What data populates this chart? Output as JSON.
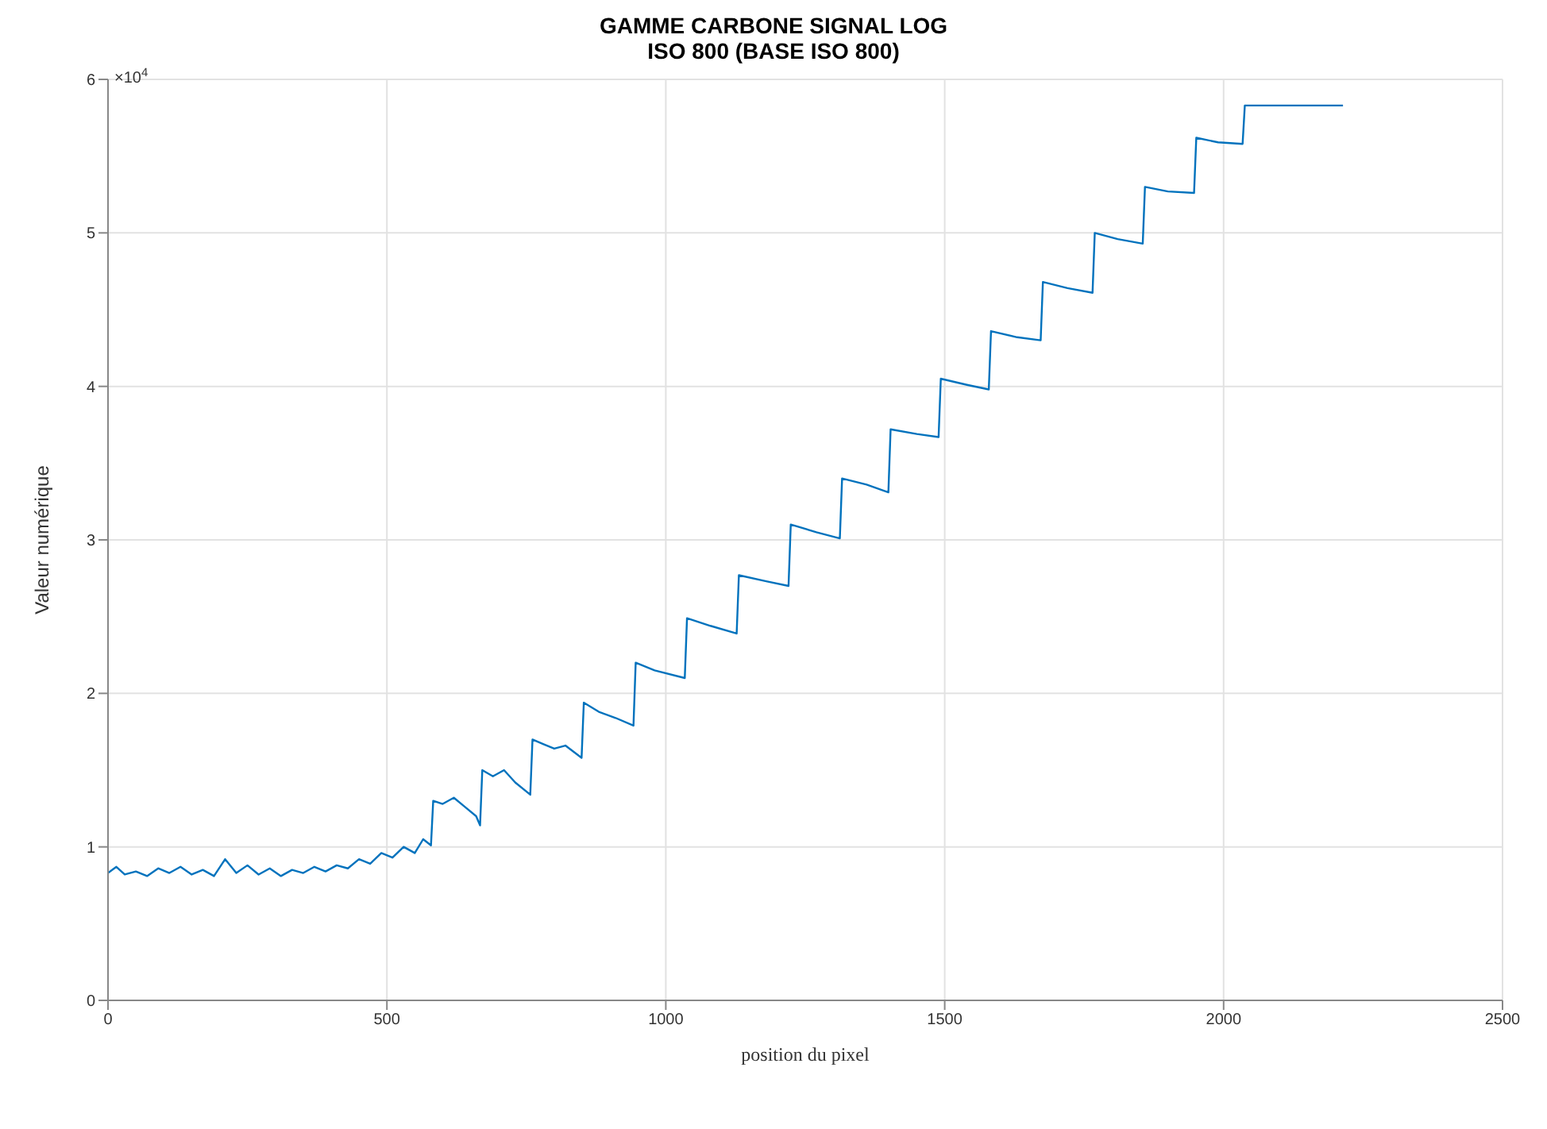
{
  "chart_data": {
    "type": "line",
    "title": "GAMME CARBONE SIGNAL LOG",
    "subtitle": "ISO 800 (BASE ISO 800)",
    "xlabel": "position du pixel",
    "ylabel": "Valeur numérique",
    "annotations": [
      "×10$^{4}$"
    ],
    "x": [
      0,
      15,
      30,
      50,
      70,
      90,
      110,
      130,
      150,
      170,
      190,
      210,
      230,
      250,
      270,
      290,
      310,
      330,
      350,
      370,
      390,
      410,
      430,
      450,
      470,
      490,
      510,
      530,
      550,
      565,
      579,
      583,
      600,
      620,
      640,
      660,
      667,
      671,
      690,
      710,
      730,
      757,
      761,
      780,
      800,
      820,
      849,
      853,
      880,
      910,
      942,
      946,
      980,
      1034,
      1038,
      1080,
      1127,
      1131,
      1180,
      1220,
      1224,
      1270,
      1312,
      1316,
      1360,
      1399,
      1403,
      1450,
      1489,
      1493,
      1540,
      1579,
      1583,
      1630,
      1672,
      1676,
      1720,
      1765,
      1769,
      1810,
      1855,
      1859,
      1900,
      1947,
      1951,
      1990,
      2034,
      2038,
      2214
    ],
    "series": [
      {
        "color": "#0072bd",
        "values": [
          0.83,
          0.87,
          0.82,
          0.84,
          0.81,
          0.86,
          0.83,
          0.87,
          0.82,
          0.85,
          0.81,
          0.92,
          0.83,
          0.88,
          0.82,
          0.86,
          0.81,
          0.85,
          0.83,
          0.87,
          0.84,
          0.88,
          0.86,
          0.92,
          0.89,
          0.96,
          0.93,
          1.0,
          0.96,
          1.05,
          1.01,
          1.3,
          1.28,
          1.32,
          1.26,
          1.2,
          1.14,
          1.5,
          1.46,
          1.5,
          1.42,
          1.34,
          1.7,
          1.67,
          1.64,
          1.66,
          1.58,
          1.94,
          1.88,
          1.84,
          1.79,
          2.2,
          2.15,
          2.1,
          2.49,
          2.44,
          2.39,
          2.77,
          2.73,
          2.7,
          3.1,
          3.05,
          3.01,
          3.4,
          3.36,
          3.31,
          3.72,
          3.69,
          3.67,
          4.05,
          4.01,
          3.98,
          4.36,
          4.32,
          4.3,
          4.68,
          4.64,
          4.61,
          5.0,
          4.96,
          4.93,
          5.3,
          5.27,
          5.26,
          5.62,
          5.59,
          5.58,
          5.83,
          5.83
        ]
      }
    ],
    "xlim": [
      0,
      2500
    ],
    "xticks": [
      0,
      500,
      1000,
      1500,
      2000,
      2500
    ],
    "ylim": [
      0,
      6
    ],
    "yticks": [
      0,
      1,
      2,
      3,
      4,
      5,
      6
    ],
    "grid": true,
    "marker": "none",
    "line_style": "solid"
  }
}
